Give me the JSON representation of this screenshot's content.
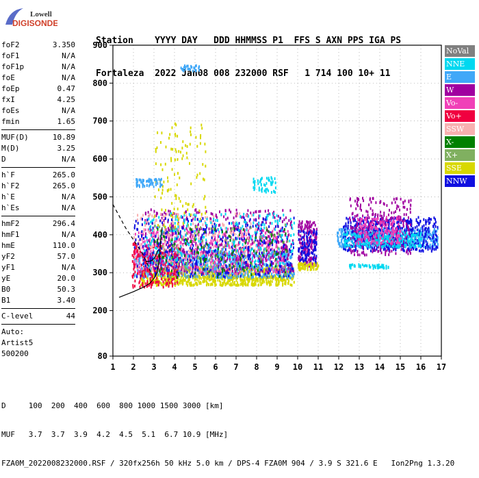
{
  "logo": {
    "line1": "Lowell",
    "line2": "DIGISONDE"
  },
  "header": {
    "row1": "Station    YYYY DAY   DDD HHMMSS P1  FFS S AXN PPS IGA PS",
    "row2": "Fortaleza  2022 Jan08 008 232000 RSF   1 714 100 10+ 11"
  },
  "params": {
    "group1": [
      {
        "label": "foF2",
        "value": "3.350"
      },
      {
        "label": "foF1",
        "value": "N/A"
      },
      {
        "label": "foF1p",
        "value": "N/A"
      },
      {
        "label": "foE",
        "value": "N/A"
      },
      {
        "label": "foEp",
        "value": "0.47"
      },
      {
        "label": "fxI",
        "value": "4.25"
      },
      {
        "label": "foEs",
        "value": "N/A"
      },
      {
        "label": "fmin",
        "value": "1.65"
      }
    ],
    "group2": [
      {
        "label": "MUF(D)",
        "value": "10.89"
      },
      {
        "label": "M(D)",
        "value": "3.25"
      },
      {
        "label": "D",
        "value": "N/A"
      }
    ],
    "group3": [
      {
        "label": "h`F",
        "value": "265.0"
      },
      {
        "label": "h`F2",
        "value": "265.0"
      },
      {
        "label": "h`E",
        "value": "N/A"
      },
      {
        "label": "h`Es",
        "value": "N/A"
      }
    ],
    "group4": [
      {
        "label": "hmF2",
        "value": "296.4"
      },
      {
        "label": "hmF1",
        "value": "N/A"
      },
      {
        "label": "hmE",
        "value": "110.0"
      },
      {
        "label": "yF2",
        "value": "57.0"
      },
      {
        "label": "yF1",
        "value": "N/A"
      },
      {
        "label": "yE",
        "value": "20.0"
      },
      {
        "label": "B0",
        "value": "50.3"
      },
      {
        "label": "B1",
        "value": "3.40"
      }
    ],
    "group5": [
      {
        "label": "C-level",
        "value": "44"
      }
    ],
    "auto": [
      "Auto:",
      "Artist5",
      "500200"
    ]
  },
  "legend": [
    {
      "label": "NoVal",
      "color": "#808080"
    },
    {
      "label": "NNE",
      "color": "#00d8f0"
    },
    {
      "label": "E",
      "color": "#40a8f8"
    },
    {
      "label": "W",
      "color": "#a000a0"
    },
    {
      "label": "Vo-",
      "color": "#f040b8"
    },
    {
      "label": "Vo+",
      "color": "#f00040"
    },
    {
      "label": "SSW",
      "color": "#f8b0b0"
    },
    {
      "label": "X-",
      "color": "#008000"
    },
    {
      "label": "X+",
      "color": "#80b060"
    },
    {
      "label": "SSE",
      "color": "#d8d800"
    },
    {
      "label": "NNW",
      "color": "#1010e0"
    }
  ],
  "footer": {
    "row1": "D     100  200  400  600  800 1000 1500 3000 [km]",
    "row2": "MUF   3.7  3.7  3.9  4.2  4.5  5.1  6.7 10.9 [MHz]",
    "row3": "FZA0M_2022008232000.RSF / 320fx256h 50 kHz 5.0 km / DPS-4 FZA0M 904 / 3.9 S 321.6 E   Ion2Png 1.3.20"
  },
  "chart_data": {
    "type": "scatter",
    "xlim": [
      1,
      17
    ],
    "ylim": [
      80,
      900
    ],
    "x_ticks": [
      1,
      2,
      3,
      4,
      5,
      6,
      7,
      8,
      9,
      10,
      11,
      12,
      13,
      14,
      15,
      16,
      17
    ],
    "y_ticks": [
      80,
      200,
      300,
      400,
      500,
      600,
      700,
      800,
      900
    ],
    "grid": true,
    "regions": [
      {
        "color": "#d8d800",
        "x": [
          2.3,
          9.8
        ],
        "y": [
          270,
          320
        ],
        "n": 900
      },
      {
        "color": "#40a8f8",
        "x": [
          2.0,
          9.8
        ],
        "y": [
          290,
          360
        ],
        "n": 800
      },
      {
        "color": "#f040b8",
        "x": [
          2.0,
          9.5
        ],
        "y": [
          300,
          420
        ],
        "n": 600
      },
      {
        "color": "#f00040",
        "x": [
          1.9,
          4.2
        ],
        "y": [
          265,
          380
        ],
        "n": 250
      },
      {
        "color": "#a000a0",
        "x": [
          2.5,
          9.8
        ],
        "y": [
          300,
          470
        ],
        "n": 500
      },
      {
        "color": "#f8b0b0",
        "x": [
          2.0,
          8.0
        ],
        "y": [
          300,
          460
        ],
        "n": 300
      },
      {
        "color": "#1010e0",
        "x": [
          2.0,
          9.8
        ],
        "y": [
          290,
          450
        ],
        "n": 400
      },
      {
        "color": "#00d8f0",
        "x": [
          2.5,
          9.8
        ],
        "y": [
          320,
          460
        ],
        "n": 250
      },
      {
        "color": "#008000",
        "x": [
          3.0,
          9.5
        ],
        "y": [
          290,
          420
        ],
        "n": 120
      },
      {
        "color": "#80b060",
        "x": [
          3.0,
          9.5
        ],
        "y": [
          290,
          430
        ],
        "n": 120
      },
      {
        "color": "#d8d800",
        "x": [
          3.0,
          5.5
        ],
        "y": [
          420,
          700
        ],
        "n": 120
      },
      {
        "color": "#40a8f8",
        "x": [
          2.1,
          3.4
        ],
        "y": [
          530,
          550
        ],
        "n": 60
      },
      {
        "color": "#40a8f8",
        "x": [
          4.2,
          5.2
        ],
        "y": [
          835,
          850
        ],
        "n": 30
      },
      {
        "color": "#00d8f0",
        "x": [
          7.8,
          8.9
        ],
        "y": [
          515,
          555
        ],
        "n": 50
      },
      {
        "color": "#a000a0",
        "x": [
          10.0,
          10.9
        ],
        "y": [
          320,
          440
        ],
        "n": 180
      },
      {
        "color": "#1010e0",
        "x": [
          10.0,
          10.9
        ],
        "y": [
          330,
          420
        ],
        "n": 100
      },
      {
        "color": "#d8d800",
        "x": [
          10.0,
          11.0
        ],
        "y": [
          310,
          330
        ],
        "n": 60
      },
      {
        "color": "#40a8f8",
        "x": [
          11.9,
          16.8
        ],
        "y": [
          370,
          420
        ],
        "n": 600
      },
      {
        "color": "#1010e0",
        "x": [
          12.2,
          16.8
        ],
        "y": [
          360,
          450
        ],
        "n": 500
      },
      {
        "color": "#a000a0",
        "x": [
          12.5,
          15.5
        ],
        "y": [
          350,
          500
        ],
        "n": 300
      },
      {
        "color": "#00d8f0",
        "x": [
          12.2,
          16.0
        ],
        "y": [
          370,
          410
        ],
        "n": 200
      },
      {
        "color": "#00d8f0",
        "x": [
          12.5,
          14.4
        ],
        "y": [
          315,
          325
        ],
        "n": 50
      },
      {
        "color": "#f040b8",
        "x": [
          12.8,
          15.0
        ],
        "y": [
          380,
          450
        ],
        "n": 150
      }
    ],
    "curves": [
      {
        "style": "solid",
        "points": [
          [
            1.3,
            235
          ],
          [
            2.0,
            250
          ],
          [
            2.5,
            262
          ],
          [
            2.8,
            272
          ],
          [
            3.0,
            285
          ],
          [
            3.15,
            300
          ],
          [
            3.25,
            330
          ],
          [
            3.35,
            400
          ],
          [
            3.4,
            420
          ]
        ]
      },
      {
        "style": "dashed",
        "points": [
          [
            1.0,
            480
          ],
          [
            1.3,
            450
          ],
          [
            1.6,
            420
          ],
          [
            1.9,
            395
          ],
          [
            2.2,
            370
          ],
          [
            2.5,
            345
          ],
          [
            2.7,
            320
          ],
          [
            2.85,
            300
          ]
        ]
      },
      {
        "style": "solid",
        "points": [
          [
            2.6,
            330
          ],
          [
            2.75,
            330
          ],
          [
            2.9,
            332
          ],
          [
            3.05,
            340
          ],
          [
            3.2,
            360
          ]
        ]
      }
    ]
  }
}
